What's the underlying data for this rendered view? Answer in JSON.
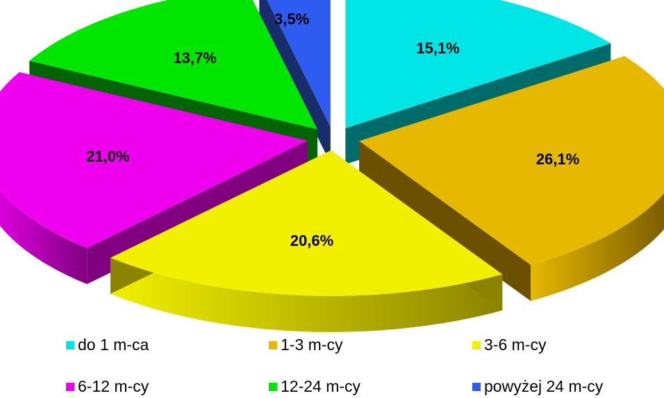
{
  "chart_data": {
    "type": "pie",
    "title": "",
    "style": "3d-exploded",
    "legend_position": "bottom",
    "slices": [
      {
        "label": "do 1 m-ca",
        "value": 15.1,
        "value_label": "15,1%",
        "color": "#00e6e6",
        "side_color": "#006b6b"
      },
      {
        "label": "1-3 m-cy",
        "value": 26.1,
        "value_label": "26,1%",
        "color": "#e6b800",
        "side_color": "#6b5000"
      },
      {
        "label": "3-6 m-cy",
        "value": 20.6,
        "value_label": "20,6%",
        "color": "#f0f000",
        "side_color": "#8c8400"
      },
      {
        "label": "6-12 m-cy",
        "value": 21.0,
        "value_label": "21,0%",
        "color": "#ee00ee",
        "side_color": "#800080"
      },
      {
        "label": "12-24 m-cy",
        "value": 13.7,
        "value_label": "13,7%",
        "color": "#00e600",
        "side_color": "#006400"
      },
      {
        "label": "powyżej 24 m-cy",
        "value": 3.5,
        "value_label": "3,5%",
        "color": "#2e5cf0",
        "side_color": "#1a2d6b"
      }
    ]
  }
}
